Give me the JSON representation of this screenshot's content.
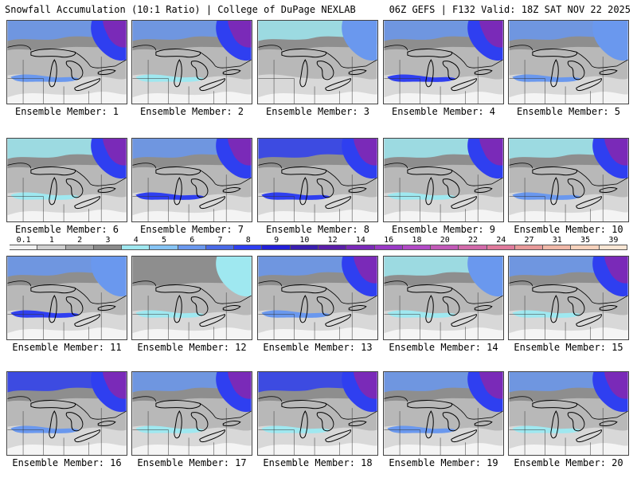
{
  "header": {
    "left": "Snowfall Accumulation (10:1 Ratio) | College of DuPage NEXLAB",
    "right": "06Z GEFS | F132 Valid: 18Z SAT NOV 22 2025"
  },
  "members": [
    {
      "label": "Ensemble Member: 1",
      "north": "medium",
      "northeast": "heavy",
      "band": "medium"
    },
    {
      "label": "Ensemble Member: 2",
      "north": "medium",
      "northeast": "heavy",
      "band": "light"
    },
    {
      "label": "Ensemble Member: 3",
      "north": "light",
      "northeast": "medium",
      "band": "none"
    },
    {
      "label": "Ensemble Member: 4",
      "north": "medium",
      "northeast": "heavy",
      "band": "heavy"
    },
    {
      "label": "Ensemble Member: 5",
      "north": "medium",
      "northeast": "medium",
      "band": "medium"
    },
    {
      "label": "Ensemble Member: 6",
      "north": "light",
      "northeast": "heavy",
      "band": "light"
    },
    {
      "label": "Ensemble Member: 7",
      "north": "medium",
      "northeast": "heavy",
      "band": "heavy"
    },
    {
      "label": "Ensemble Member: 8",
      "north": "heavy",
      "northeast": "heavy",
      "band": "heavy"
    },
    {
      "label": "Ensemble Member: 9",
      "north": "light",
      "northeast": "heavy",
      "band": "light"
    },
    {
      "label": "Ensemble Member: 10",
      "north": "light",
      "northeast": "heavy",
      "band": "medium"
    },
    {
      "label": "Ensemble Member: 11",
      "north": "medium",
      "northeast": "medium",
      "band": "heavy"
    },
    {
      "label": "Ensemble Member: 12",
      "north": "none",
      "northeast": "light",
      "band": "light"
    },
    {
      "label": "Ensemble Member: 13",
      "north": "medium",
      "northeast": "heavy",
      "band": "medium"
    },
    {
      "label": "Ensemble Member: 14",
      "north": "light",
      "northeast": "medium",
      "band": "light"
    },
    {
      "label": "Ensemble Member: 15",
      "north": "medium",
      "northeast": "heavy",
      "band": "light"
    },
    {
      "label": "Ensemble Member: 16",
      "north": "heavy",
      "northeast": "heavy",
      "band": "medium"
    },
    {
      "label": "Ensemble Member: 17",
      "north": "medium",
      "northeast": "heavy",
      "band": "light"
    },
    {
      "label": "Ensemble Member: 18",
      "north": "heavy",
      "northeast": "heavy",
      "band": "light"
    },
    {
      "label": "Ensemble Member: 19",
      "north": "medium",
      "northeast": "heavy",
      "band": "medium"
    },
    {
      "label": "Ensemble Member: 20",
      "north": "medium",
      "northeast": "heavy",
      "band": "light"
    }
  ],
  "colorbar": {
    "labels": [
      "0.1",
      "1",
      "2",
      "3",
      "4",
      "5",
      "6",
      "7",
      "8",
      "9",
      "10",
      "12",
      "14",
      "16",
      "18",
      "20",
      "22",
      "24",
      "27",
      "31",
      "35",
      "39"
    ],
    "colors": [
      "#f2f2f2",
      "#d0d0d0",
      "#a8a8a8",
      "#8a8a8a",
      "#9fe8f0",
      "#86c4f4",
      "#6a98ee",
      "#4a6ae6",
      "#2f3ff0",
      "#2320d8",
      "#3a1fb0",
      "#5a1fa8",
      "#7a2ab8",
      "#9a3ac6",
      "#b24ac6",
      "#c25ab8",
      "#d26aaa",
      "#e07a9c",
      "#e89a9a",
      "#f0b8a8",
      "#f6d2bc",
      "#fae6d4"
    ]
  }
}
